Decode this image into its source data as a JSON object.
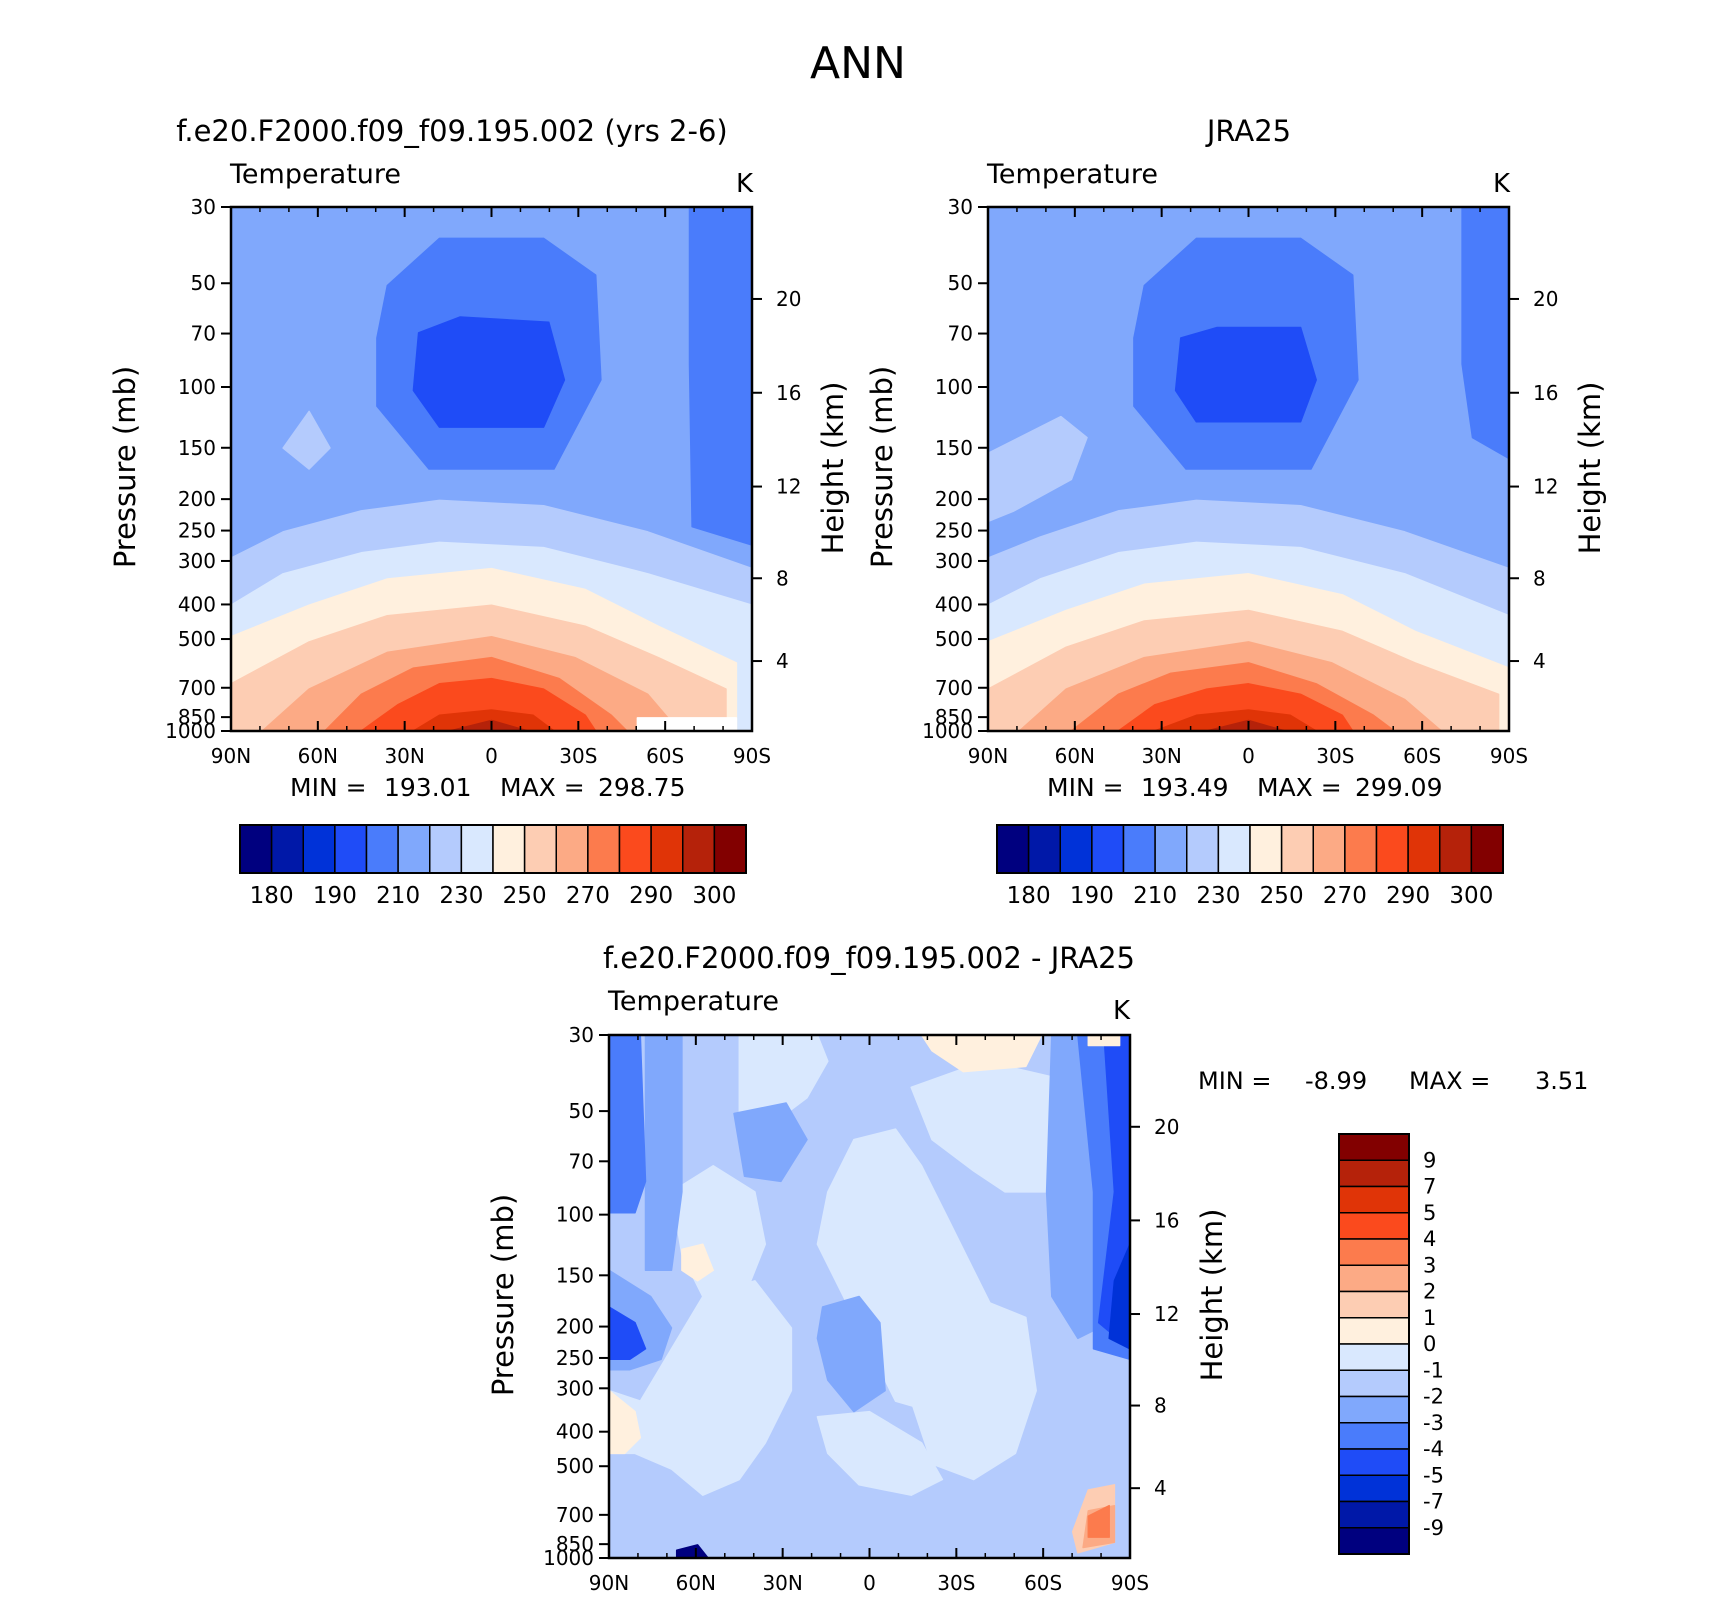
{
  "page_title": "ANN",
  "palette": {
    "abs": [
      "#00007f",
      "#0018a8",
      "#0032d8",
      "#1f4cf7",
      "#4a7cfb",
      "#80a8fc",
      "#b4cbfd",
      "#d9e8fe",
      "#fff0de",
      "#fdcdb3",
      "#fcaa85",
      "#fc7b4d",
      "#fb4a1d",
      "#e03407",
      "#b5220a",
      "#820000"
    ],
    "diff": [
      "#00007f",
      "#0018a8",
      "#0032d8",
      "#1f4cf7",
      "#4a7cfb",
      "#80a8fc",
      "#b4cbfd",
      "#d9e8fe",
      "#fff0de",
      "#fdcdb3",
      "#fcaa85",
      "#fc7b4d",
      "#fb4a1d",
      "#e03407",
      "#b5220a",
      "#820000"
    ]
  },
  "chart_data": [
    {
      "id": "model",
      "type": "contour",
      "title": "f.e20.F2000.f09_f09.195.002 (yrs 2-6)",
      "variable": "Temperature",
      "units": "K",
      "ylabel": "Pressure (mb)",
      "y2label": "Height (km)",
      "x_ticks": [
        "90N",
        "60N",
        "30N",
        "0",
        "30S",
        "60S",
        "90S"
      ],
      "y_ticks": [
        "30",
        "50",
        "70",
        "100",
        "150",
        "200",
        "250",
        "300",
        "400",
        "500",
        "700",
        "850",
        "1000"
      ],
      "y2_ticks": [
        "20",
        "16",
        "12",
        "8",
        "4"
      ],
      "min_label": "MIN =",
      "min": "193.01",
      "max_label": "MAX =",
      "max": "298.75",
      "colorbar_labels": [
        "180",
        "190",
        "210",
        "230",
        "250",
        "270",
        "290",
        "300"
      ]
    },
    {
      "id": "obs",
      "type": "contour",
      "title": "JRA25",
      "variable": "Temperature",
      "units": "K",
      "ylabel": "Pressure (mb)",
      "y2label": "Height (km)",
      "x_ticks": [
        "90N",
        "60N",
        "30N",
        "0",
        "30S",
        "60S",
        "90S"
      ],
      "y_ticks": [
        "30",
        "50",
        "70",
        "100",
        "150",
        "200",
        "250",
        "300",
        "400",
        "500",
        "700",
        "850",
        "1000"
      ],
      "y2_ticks": [
        "20",
        "16",
        "12",
        "8",
        "4"
      ],
      "min_label": "MIN =",
      "min": "193.49",
      "max_label": "MAX =",
      "max": "299.09",
      "colorbar_labels": [
        "180",
        "190",
        "210",
        "230",
        "250",
        "270",
        "290",
        "300"
      ]
    },
    {
      "id": "diff",
      "type": "contour",
      "title": "f.e20.F2000.f09_f09.195.002 - JRA25",
      "variable": "Temperature",
      "units": "K",
      "ylabel": "Pressure (mb)",
      "y2label": "Height (km)",
      "x_ticks": [
        "90N",
        "60N",
        "30N",
        "0",
        "30S",
        "60S",
        "90S"
      ],
      "y_ticks": [
        "30",
        "50",
        "70",
        "100",
        "150",
        "200",
        "250",
        "300",
        "400",
        "500",
        "700",
        "850",
        "1000"
      ],
      "y2_ticks": [
        "20",
        "16",
        "12",
        "8",
        "4"
      ],
      "min_label": "MIN =",
      "min": "-8.99",
      "max_label": "MAX =",
      "max": "3.51",
      "colorbar_labels": [
        "9",
        "7",
        "5",
        "4",
        "3",
        "2",
        "1",
        "0",
        "-1",
        "-2",
        "-3",
        "-4",
        "-5",
        "-7",
        "-9"
      ]
    }
  ]
}
